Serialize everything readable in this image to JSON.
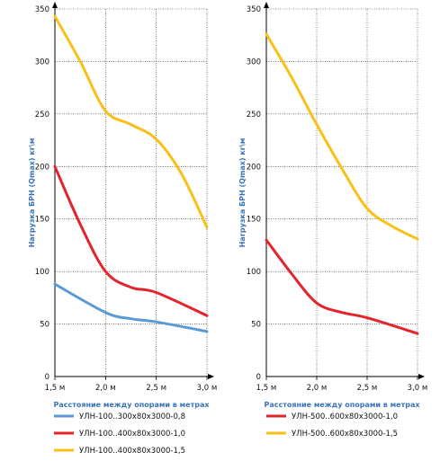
{
  "charts": [
    {
      "type": "line",
      "ylabel": "Нагрузка БРН (Qmax) кг\\м",
      "xlabel": "Расстояние между опорами в метрах",
      "x_ticks": [
        "1,5 м",
        "2,0 м",
        "2,5 м",
        "3,0 м"
      ],
      "y_ticks": [
        "0",
        "50",
        "100",
        "150",
        "200",
        "250",
        "300",
        "350"
      ],
      "ylim": [
        0,
        350
      ],
      "series": [
        {
          "name": "УЛН-100..300х80х3000-0,8",
          "color": "#5b9bd5",
          "points": [
            [
              1.5,
              88
            ],
            [
              2.0,
              61
            ],
            [
              2.25,
              55
            ],
            [
              2.5,
              52
            ],
            [
              3.0,
              43
            ]
          ]
        },
        {
          "name": "УЛН-100..400х80х3000-1,0",
          "color": "#e3242b",
          "points": [
            [
              1.5,
              200
            ],
            [
              1.75,
              145
            ],
            [
              2.0,
              100
            ],
            [
              2.25,
              85
            ],
            [
              2.5,
              80
            ],
            [
              3.0,
              58
            ]
          ]
        },
        {
          "name": "УЛН-100..400х80х3000-1,5",
          "color": "#fbbf18",
          "points": [
            [
              1.5,
              343
            ],
            [
              1.75,
              300
            ],
            [
              2.0,
              253
            ],
            [
              2.25,
              240
            ],
            [
              2.5,
              226
            ],
            [
              2.75,
              193
            ],
            [
              3.0,
              142
            ]
          ]
        }
      ]
    },
    {
      "type": "line",
      "ylabel": "Нагрузка БРН (Qmax) кг\\м",
      "xlabel": "Расстояние между опорами в метрах",
      "x_ticks": [
        "1,5 м",
        "2,0 м",
        "2,5 м",
        "3,0 м"
      ],
      "y_ticks": [
        "0",
        "50",
        "100",
        "150",
        "200",
        "250",
        "300",
        "350"
      ],
      "ylim": [
        0,
        350
      ],
      "series": [
        {
          "name": "УЛН-500..600х80х3000-1,0",
          "color": "#e3242b",
          "points": [
            [
              1.5,
              130
            ],
            [
              1.75,
              98
            ],
            [
              2.0,
              70
            ],
            [
              2.25,
              61
            ],
            [
              2.5,
              56
            ],
            [
              3.0,
              41
            ]
          ]
        },
        {
          "name": "УЛН-500..600х80х3000-1,5",
          "color": "#fbbf18",
          "points": [
            [
              1.5,
              326
            ],
            [
              1.75,
              285
            ],
            [
              2.0,
              240
            ],
            [
              2.25,
              198
            ],
            [
              2.5,
              160
            ],
            [
              2.75,
              143
            ],
            [
              3.0,
              131
            ]
          ]
        }
      ]
    }
  ],
  "chart_data": [
    {
      "type": "line",
      "x": [
        1.5,
        2.0,
        2.5,
        3.0
      ],
      "xlabel": "Расстояние между опорами в метрах",
      "ylabel": "Нагрузка БРН (Qmax) кг\\м",
      "ylim": [
        0,
        350
      ],
      "grid": true,
      "legend": "bottom",
      "series": [
        {
          "name": "УЛН-100..300х80х3000-0,8",
          "values": [
            88,
            61,
            52,
            43
          ]
        },
        {
          "name": "УЛН-100..400х80х3000-1,0",
          "values": [
            200,
            100,
            80,
            58
          ]
        },
        {
          "name": "УЛН-100..400х80х3000-1,5",
          "values": [
            343,
            253,
            226,
            142
          ]
        }
      ]
    },
    {
      "type": "line",
      "x": [
        1.5,
        2.0,
        2.5,
        3.0
      ],
      "xlabel": "Расстояние между опорами в метрах",
      "ylabel": "Нагрузка БРН (Qmax) кг\\м",
      "ylim": [
        0,
        350
      ],
      "grid": true,
      "legend": "bottom",
      "series": [
        {
          "name": "УЛН-500..600х80х3000-1,0",
          "values": [
            130,
            70,
            56,
            41
          ]
        },
        {
          "name": "УЛН-500..600х80х3000-1,5",
          "values": [
            326,
            240,
            160,
            131
          ]
        }
      ]
    }
  ]
}
